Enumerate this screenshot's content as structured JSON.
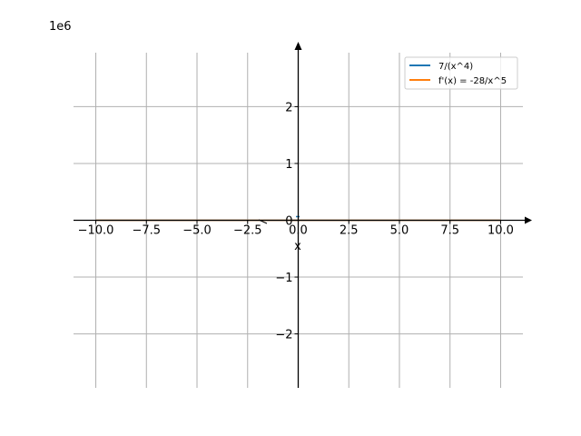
{
  "chart_data": {
    "type": "line",
    "title": "",
    "xlabel": "x",
    "ylabel": "",
    "y_scale_label": "1e6",
    "xlim": [
      -11.1,
      11.1
    ],
    "ylim": [
      -2.95,
      2.95
    ],
    "x_ticks": [
      -10,
      -7.5,
      -5,
      -2.5,
      0,
      2.5,
      5,
      7.5,
      10
    ],
    "x_tick_labels": [
      "−10.0",
      "−7.5",
      "−5.0",
      "−2.5",
      "0.0",
      "2.5",
      "5.0",
      "7.5",
      "10.0"
    ],
    "y_ticks": [
      -2,
      -1,
      0,
      1,
      2
    ],
    "y_tick_labels": [
      "−2",
      "−1",
      "0",
      "1",
      "2"
    ],
    "grid": true,
    "legend_position": "top-right",
    "series": [
      {
        "name": "7/(x^4)",
        "color": "#1f77b4"
      },
      {
        "name": "f'(x) = -28/x^5",
        "color": "#ff7f0e"
      }
    ]
  }
}
